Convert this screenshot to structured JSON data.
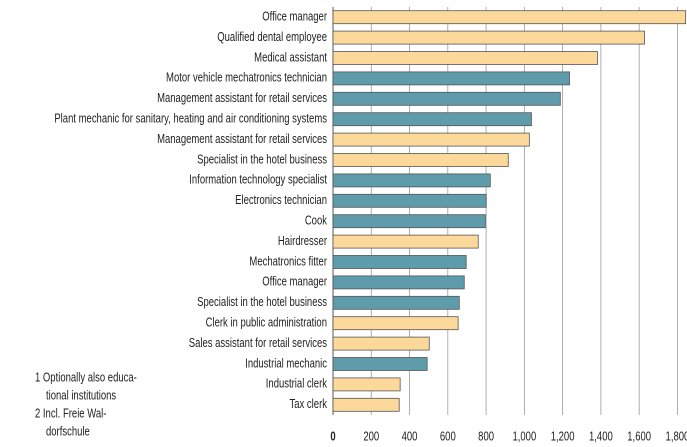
{
  "chart_data": {
    "type": "bar",
    "orientation": "horizontal",
    "categories": [
      "Office manager",
      "Qualified dental employee",
      "Medical assistant",
      "Motor vehicle mechatronics technician",
      "Management assistant for retail services",
      "Plant mechanic for sanitary, heating and air conditioning systems",
      "Management assistant for retail services",
      "Specialist in the hotel business",
      "Information technology specialist",
      "Electronics technician",
      "Cook",
      "Hairdresser",
      "Mechatronics fitter",
      "Office manager",
      "Specialist in the hotel business",
      "Clerk in public administration",
      "Sales assistant for retail services",
      "Industrial mechanic",
      "Industrial clerk",
      "Tax clerk"
    ],
    "values": [
      1843,
      1628,
      1382,
      1236,
      1188,
      1037,
      1026,
      916,
      822,
      801,
      796,
      759,
      696,
      686,
      660,
      654,
      503,
      492,
      351,
      346
    ],
    "colors": [
      "#fcd99b",
      "#fcd99b",
      "#fcd99b",
      "#5f9cab",
      "#5f9cab",
      "#5f9cab",
      "#fcd99b",
      "#fcd99b",
      "#5f9cab",
      "#5f9cab",
      "#5f9cab",
      "#fcd99b",
      "#5f9cab",
      "#5f9cab",
      "#5f9cab",
      "#fcd99b",
      "#fcd99b",
      "#5f9cab",
      "#fcd99b",
      "#fcd99b"
    ],
    "xlim": [
      0,
      1850
    ],
    "xticks": [
      0,
      200,
      400,
      600,
      800,
      {
        "value": 1000,
        "label": "1,000"
      },
      {
        "value": 1200,
        "label": "1,200"
      },
      {
        "value": 1400,
        "label": "1,400"
      },
      {
        "value": 1600,
        "label": "1,600"
      },
      {
        "value": 1800,
        "label": "1,800"
      }
    ],
    "grid": true,
    "notes": [
      "1 Optionally also educa-",
      "tional institutions",
      "2 Incl. Freie Wal-",
      "dorfschule"
    ]
  }
}
